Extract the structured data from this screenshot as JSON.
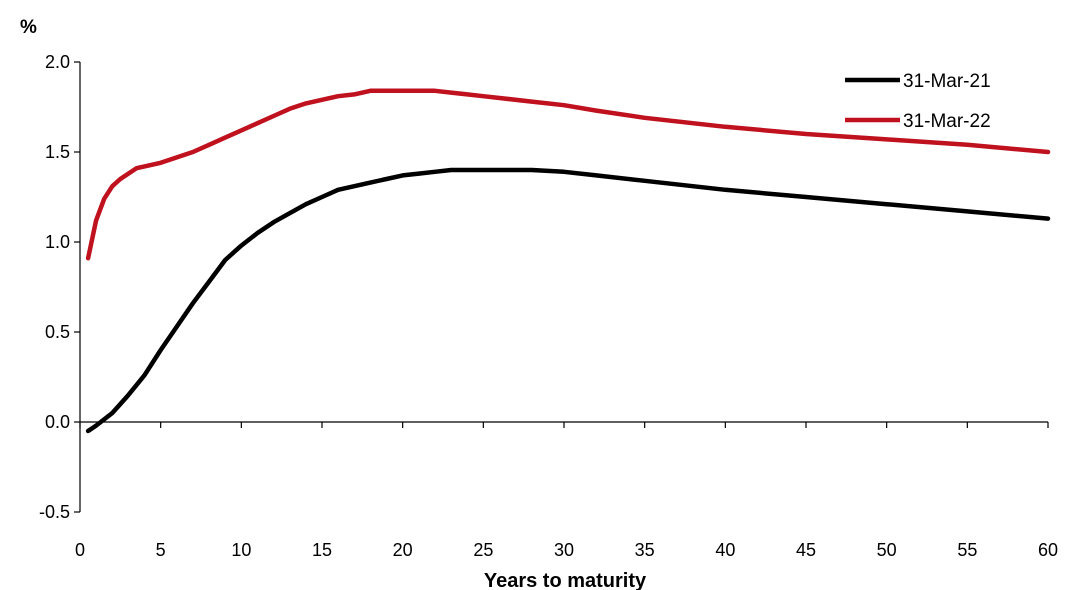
{
  "chart_data": {
    "type": "line",
    "title": "",
    "ylabel": "%",
    "xlabel": "Years to maturity",
    "xlim": [
      0,
      60
    ],
    "ylim": [
      -0.5,
      2.0
    ],
    "x_ticks": [
      0,
      5,
      10,
      15,
      20,
      25,
      30,
      35,
      40,
      45,
      50,
      55,
      60
    ],
    "x_tick_labels": [
      "0",
      "5",
      "10",
      "15",
      "20",
      "25",
      "30",
      "35",
      "40",
      "45",
      "50",
      "55",
      "60"
    ],
    "y_ticks": [
      -0.5,
      0.0,
      0.5,
      1.0,
      1.5,
      2.0
    ],
    "y_tick_labels": [
      "-0.5",
      "0.0",
      "0.5",
      "1.0",
      "1.5",
      "2.0"
    ],
    "grid": false,
    "legend_position": "top-right",
    "series": [
      {
        "name": "31-Mar-21",
        "color": "#000000",
        "x": [
          0.5,
          1,
          2,
          3,
          4,
          5,
          6,
          7,
          8,
          9,
          10,
          11,
          12,
          13,
          14,
          15,
          16,
          17,
          18,
          19,
          20,
          21,
          22,
          23,
          24,
          25,
          26,
          27,
          28,
          30,
          32,
          35,
          40,
          45,
          50,
          55,
          60
        ],
        "y": [
          -0.05,
          -0.02,
          0.05,
          0.15,
          0.26,
          0.4,
          0.53,
          0.66,
          0.78,
          0.9,
          0.98,
          1.05,
          1.11,
          1.16,
          1.21,
          1.25,
          1.29,
          1.31,
          1.33,
          1.35,
          1.37,
          1.38,
          1.39,
          1.4,
          1.4,
          1.4,
          1.4,
          1.4,
          1.4,
          1.39,
          1.37,
          1.34,
          1.29,
          1.25,
          1.21,
          1.17,
          1.13
        ]
      },
      {
        "name": "31-Mar-22",
        "color": "#c0111f",
        "x": [
          0.5,
          1,
          1.5,
          2,
          2.5,
          3,
          3.5,
          4,
          5,
          6,
          7,
          8,
          9,
          10,
          11,
          12,
          13,
          14,
          15,
          16,
          17,
          18,
          19,
          20,
          21,
          22,
          23,
          24,
          25,
          26,
          28,
          30,
          32,
          35,
          40,
          45,
          50,
          55,
          60
        ],
        "y": [
          0.91,
          1.12,
          1.24,
          1.31,
          1.35,
          1.38,
          1.41,
          1.42,
          1.44,
          1.47,
          1.5,
          1.54,
          1.58,
          1.62,
          1.66,
          1.7,
          1.74,
          1.77,
          1.79,
          1.81,
          1.82,
          1.84,
          1.84,
          1.84,
          1.84,
          1.84,
          1.83,
          1.82,
          1.81,
          1.8,
          1.78,
          1.76,
          1.73,
          1.69,
          1.64,
          1.6,
          1.57,
          1.54,
          1.5
        ]
      }
    ]
  }
}
